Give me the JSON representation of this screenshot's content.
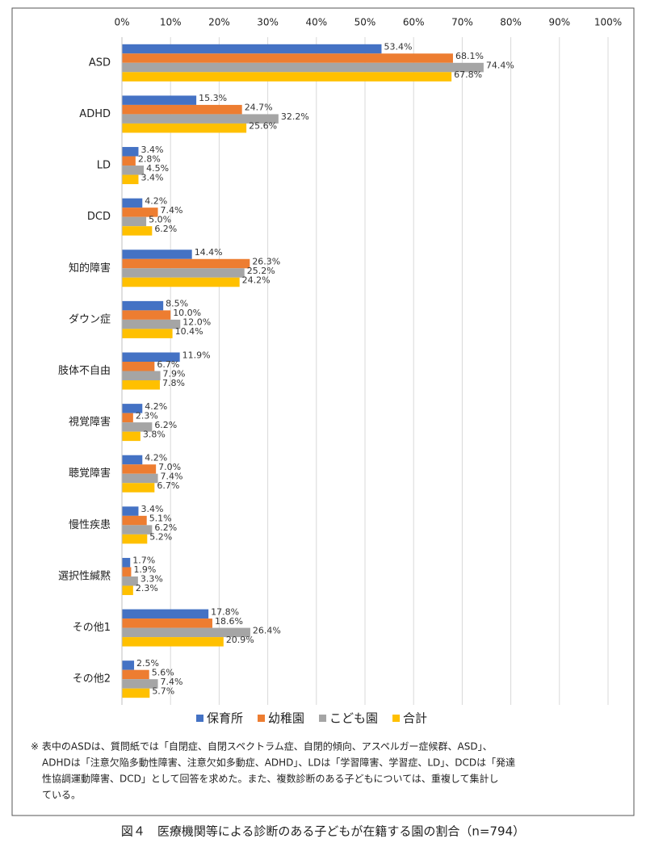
{
  "chart_data": {
    "type": "barh",
    "categories": [
      "ASD",
      "ADHD",
      "LD",
      "DCD",
      "知的障害",
      "ダウン症",
      "肢体不自由",
      "視覚障害",
      "聴覚障害",
      "慢性疾患",
      "選択性緘黙",
      "その他1",
      "その他2"
    ],
    "series": [
      {
        "name": "保育所",
        "color": "#4472c4",
        "values": [
          53.4,
          15.3,
          3.4,
          4.2,
          14.4,
          8.5,
          11.9,
          4.2,
          4.2,
          3.4,
          1.7,
          17.8,
          2.5
        ],
        "value_labels": [
          "53.4%",
          "15.3%",
          "3.4%",
          "4.2%",
          "14.4%",
          "8.5%",
          "11.9%",
          "4.2%",
          "4.2%",
          "3.4%",
          "1.7%",
          "17.8%",
          "2.5%"
        ]
      },
      {
        "name": "幼稚園",
        "color": "#ed7d31",
        "values": [
          68.1,
          24.7,
          2.8,
          7.4,
          26.3,
          10.0,
          6.7,
          2.3,
          7.0,
          5.1,
          1.9,
          18.6,
          5.6
        ],
        "value_labels": [
          "68.1%",
          "24.7%",
          "2.8%",
          "7.4%",
          "26.3%",
          "10.0%",
          "6.7%",
          "2.3%",
          "7.0%",
          "5.1%",
          "1.9%",
          "18.6%",
          "5.6%"
        ]
      },
      {
        "name": "こども園",
        "color": "#a5a5a5",
        "values": [
          74.4,
          32.2,
          4.5,
          5.0,
          25.2,
          12.0,
          7.9,
          6.2,
          7.4,
          6.2,
          3.3,
          26.4,
          7.4
        ],
        "value_labels": [
          "74.4%",
          "32.2%",
          "4.5%",
          "5.0%",
          "25.2%",
          "12.0%",
          "7.9%",
          "6.2%",
          "7.4%",
          "6.2%",
          "3.3%",
          "26.4%",
          "7.4%"
        ]
      },
      {
        "name": "合計",
        "color": "#ffc000",
        "values": [
          67.8,
          25.6,
          3.4,
          6.2,
          24.2,
          10.4,
          7.8,
          3.8,
          6.7,
          5.2,
          2.3,
          20.9,
          5.7
        ],
        "value_labels": [
          "67.8%",
          "25.6%",
          "3.4%",
          "6.2%",
          "24.2%",
          "10.4%",
          "7.8%",
          "3.8%",
          "6.7%",
          "5.2%",
          "2.3%",
          "20.9%",
          "5.7%"
        ]
      }
    ],
    "xlim": [
      0,
      100
    ],
    "xticks": [
      {
        "value": 0,
        "label": "0%"
      },
      {
        "value": 10,
        "label": "10%"
      },
      {
        "value": 20,
        "label": "20%"
      },
      {
        "value": 30,
        "label": "30%"
      },
      {
        "value": 40,
        "label": "40%"
      },
      {
        "value": 50,
        "label": "50%"
      },
      {
        "value": 60,
        "label": "60%"
      },
      {
        "value": 70,
        "label": "70%"
      },
      {
        "value": 80,
        "label": "80%"
      },
      {
        "value": 90,
        "label": "90%"
      },
      {
        "value": 100,
        "label": "100%"
      }
    ],
    "grid": true,
    "legend": "bottom",
    "note": [
      "※ 表中のASDは、質問紙では「自閉症、自閉スペクトラム症、自閉的傾向、アスペルガー症候群、ASD」、",
      "ADHDは「注意欠陥多動性障害、注意欠如多動症、ADHD」、LDは「学習障害、学習症、LD」、DCDは「発達",
      "性協調運動障害、DCD」として回答を求めた。また、複数診断のある子どもについては、重複して集計し",
      "ている。"
    ],
    "caption": "図４　医療機関等による診断のある子どもが在籍する園の割合（n=794）"
  }
}
